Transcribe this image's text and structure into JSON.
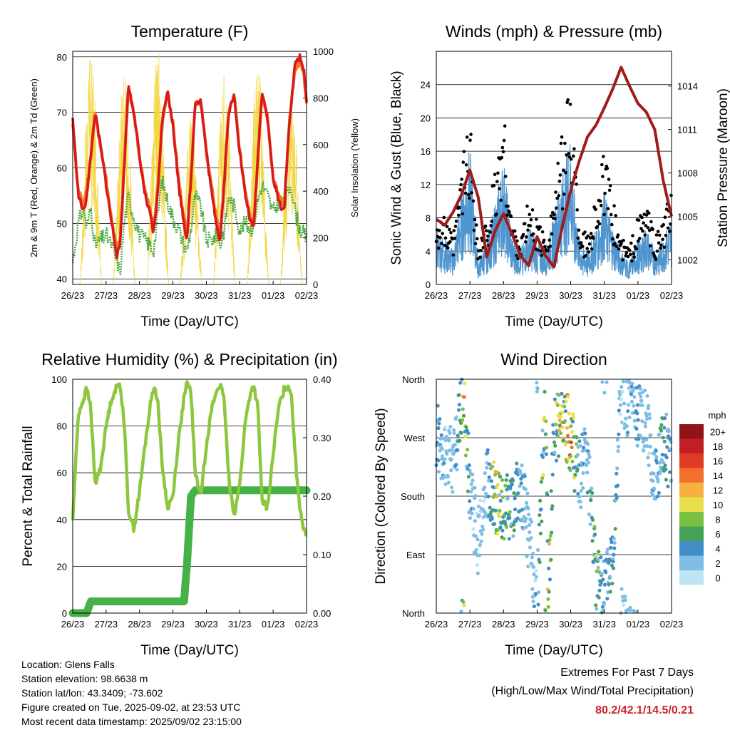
{
  "days": [
    "26/23",
    "27/23",
    "28/23",
    "29/23",
    "30/23",
    "31/23",
    "01/23",
    "02/23"
  ],
  "colors": {
    "temp2m": "#d7191c",
    "temp9m": "#f47a20",
    "dewpoint": "#4aa83f",
    "solar": "#f2d640",
    "wind": "#4f95cf",
    "gust": "#000000",
    "pressure": "#a01c1c",
    "rh": "#8dc63f",
    "precip": "#46b146"
  },
  "speed_scale": {
    "unit": "mph",
    "labels": [
      "0",
      "2",
      "4",
      "6",
      "8",
      "10",
      "12",
      "14",
      "16",
      "18",
      "20+"
    ],
    "colors": [
      "#bde3f4",
      "#7dbde6",
      "#3f8ec8",
      "#46a257",
      "#7ac143",
      "#e8df4a",
      "#f7b043",
      "#f2702b",
      "#df3b26",
      "#c21e25",
      "#8f1519"
    ]
  },
  "panels": {
    "temperature": {
      "title": "Temperature (F)",
      "xlabel": "Time (Day/UTC)",
      "ylabel_left": "2m & 9m T (Red, Orange) & 2m Td (Green)",
      "ylabel_right": "Solar Insolation (Yellow)"
    },
    "winds": {
      "title": "Winds (mph) & Pressure (mb)",
      "xlabel": "Time (Day/UTC)",
      "ylabel_left": "Sonic Wind & Gust (Blue, Black)",
      "ylabel_right": "Station Pressure (Maroon)"
    },
    "humidity": {
      "title": "Relative Humidity (%) & Precipitation (in)",
      "xlabel": "Time (Day/UTC)",
      "ylabel_left": "Percent & Total Rainfall"
    },
    "direction": {
      "title": "Wind Direction",
      "xlabel": "Time (Day/UTC)",
      "ylabel_left": "Direction (Colored By Speed)"
    }
  },
  "chart_data": [
    {
      "type": "line",
      "title": "Temperature (F)",
      "xlabel": "Time (Day/UTC)",
      "ylabel": "2m & 9m T (Red, Orange) & 2m Td (Green)",
      "ylabel_right": "Solar Insolation (Yellow)",
      "x_categories": [
        "26/23",
        "27/23",
        "28/23",
        "29/23",
        "30/23",
        "31/23",
        "01/23",
        "02/23"
      ],
      "ylim": [
        39,
        81
      ],
      "yticks": [
        40,
        50,
        60,
        70,
        80
      ],
      "ylim_right": [
        0,
        1000
      ],
      "yticks_right": [
        0,
        200,
        400,
        600,
        800,
        1000
      ],
      "x_hours": [
        0,
        4,
        8,
        10,
        13,
        16,
        20,
        24,
        28,
        32,
        34,
        37,
        40,
        44,
        48,
        52,
        56,
        58,
        61,
        64,
        68,
        72,
        76,
        80,
        82,
        85,
        88,
        92,
        96,
        100,
        104,
        106,
        109,
        112,
        116,
        120,
        124,
        128,
        130,
        133,
        136,
        140,
        144,
        148,
        152,
        154,
        157,
        160,
        163,
        166,
        168
      ],
      "series": [
        {
          "name": "2m T",
          "axis": "left",
          "values": [
            69,
            55,
            52,
            55,
            62,
            70,
            64,
            57,
            50,
            44,
            46,
            60,
            75,
            70,
            62,
            55,
            51,
            48,
            55,
            68,
            74,
            68,
            57,
            50,
            47,
            58,
            72,
            72,
            63,
            55,
            49,
            47,
            58,
            70,
            73,
            63,
            55,
            50,
            49,
            62,
            74,
            69,
            58,
            54,
            52,
            62,
            72,
            79,
            80,
            78,
            72
          ]
        },
        {
          "name": "9m T",
          "axis": "left",
          "values": [
            68,
            56,
            53,
            56,
            62,
            70,
            64,
            58,
            51,
            45,
            47,
            61,
            74,
            70,
            62,
            56,
            52,
            49,
            56,
            67,
            74,
            68,
            58,
            51,
            48,
            58,
            72,
            72,
            63,
            56,
            50,
            48,
            58,
            70,
            73,
            63,
            56,
            51,
            50,
            62,
            73,
            69,
            58,
            55,
            53,
            62,
            72,
            78,
            79,
            77,
            72
          ]
        },
        {
          "name": "2m Td",
          "axis": "left",
          "values": [
            43,
            50,
            53,
            49,
            53,
            46,
            47,
            48,
            46,
            43,
            41,
            50,
            55,
            51,
            48,
            47,
            46,
            45,
            51,
            58,
            54,
            51,
            49,
            46,
            45,
            49,
            55,
            53,
            47,
            47,
            48,
            46,
            49,
            55,
            53,
            49,
            50,
            49,
            50,
            54,
            57,
            55,
            52,
            54,
            53,
            55,
            57,
            52,
            49,
            48,
            47
          ]
        }
      ],
      "solar": {
        "axis": "right",
        "day_peaks": [
          [
            13,
            1000
          ],
          [
            37,
            920
          ],
          [
            61,
            1020
          ],
          [
            85,
            720
          ],
          [
            109,
            960
          ],
          [
            133,
            960
          ],
          [
            157,
            840
          ]
        ]
      }
    },
    {
      "type": "line",
      "title": "Winds (mph) & Pressure (mb)",
      "xlabel": "Time (Day/UTC)",
      "ylabel": "Sonic Wind & Gust (Blue, Black)",
      "ylabel_right": "Station Pressure (Maroon)",
      "x_categories": [
        "26/23",
        "27/23",
        "28/23",
        "29/23",
        "30/23",
        "31/23",
        "01/23",
        "02/23"
      ],
      "ylim": [
        0,
        28
      ],
      "yticks": [
        0,
        4,
        8,
        12,
        16,
        20,
        24
      ],
      "ylim_right": [
        1000.3,
        1016.4
      ],
      "yticks_right": [
        1002,
        1005,
        1008,
        1011,
        1014
      ],
      "x_hours": [
        0,
        6,
        12,
        18,
        24,
        30,
        36,
        42,
        48,
        54,
        60,
        66,
        72,
        78,
        84,
        90,
        96,
        102,
        108,
        114,
        120,
        126,
        132,
        138,
        144,
        150,
        156,
        162,
        168
      ],
      "series": [
        {
          "name": "Sonic Wind",
          "axis": "left",
          "values": [
            5,
            4,
            3,
            8,
            12,
            2,
            4,
            7,
            11,
            4,
            3,
            5,
            4,
            3,
            6,
            10,
            13,
            4,
            3,
            5,
            8,
            5,
            3,
            2,
            4,
            5,
            3,
            4,
            6
          ]
        },
        {
          "name": "Gust",
          "axis": "left",
          "values": [
            8,
            7,
            5,
            13,
            18,
            4,
            7,
            12,
            19,
            7,
            5,
            9,
            7,
            5,
            10,
            16,
            22,
            7,
            5,
            10,
            14,
            9,
            5,
            4,
            7,
            9,
            5,
            7,
            10
          ]
        },
        {
          "name": "Station Pressure",
          "axis": "right",
          "values": [
            1004.8,
            1004.4,
            1005.3,
            1006.5,
            1008.2,
            1006.3,
            1002.2,
            1004.0,
            1005.2,
            1003.8,
            1002.3,
            1001.6,
            1003.6,
            1002.3,
            1001.5,
            1004.3,
            1006.8,
            1008.8,
            1010.5,
            1011.3,
            1012.5,
            1013.8,
            1015.3,
            1014.0,
            1012.8,
            1012.2,
            1011.0,
            1007.5,
            1005.0
          ]
        }
      ]
    },
    {
      "type": "line",
      "title": "Relative Humidity (%) & Precipitation (in)",
      "xlabel": "Time (Day/UTC)",
      "ylabel": "Percent & Total Rainfall",
      "x_categories": [
        "26/23",
        "27/23",
        "28/23",
        "29/23",
        "30/23",
        "31/23",
        "01/23",
        "02/23"
      ],
      "ylim": [
        0,
        100
      ],
      "yticks": [
        0,
        20,
        40,
        60,
        80,
        100
      ],
      "ylim_right": [
        0,
        0.4
      ],
      "yticks_right": [
        "0.00",
        "0.10",
        "0.20",
        "0.30",
        "0.40"
      ],
      "x_hours": [
        0,
        4,
        8,
        10,
        13,
        16,
        20,
        24,
        28,
        32,
        34,
        37,
        40,
        44,
        48,
        52,
        56,
        58,
        61,
        64,
        68,
        72,
        76,
        80,
        82,
        85,
        88,
        92,
        96,
        100,
        104,
        106,
        109,
        112,
        116,
        120,
        124,
        128,
        130,
        133,
        136,
        140,
        144,
        148,
        152,
        154,
        157,
        160,
        163,
        166,
        168
      ],
      "series": [
        {
          "name": "Relative Humidity",
          "axis": "left",
          "values": [
            40,
            85,
            92,
            96,
            88,
            55,
            62,
            80,
            92,
            97,
            98,
            82,
            44,
            36,
            52,
            72,
            90,
            97,
            92,
            65,
            45,
            50,
            74,
            92,
            98,
            95,
            60,
            50,
            72,
            88,
            96,
            98,
            90,
            58,
            42,
            55,
            82,
            95,
            97,
            88,
            48,
            45,
            68,
            88,
            96,
            97,
            95,
            66,
            46,
            36,
            34
          ]
        },
        {
          "name": "Total Precipitation",
          "axis": "right",
          "values": [
            0,
            0,
            0,
            0,
            0.02,
            0.02,
            0.02,
            0.02,
            0.02,
            0.02,
            0.02,
            0.02,
            0.02,
            0.02,
            0.02,
            0.02,
            0.02,
            0.02,
            0.02,
            0.02,
            0.02,
            0.02,
            0.02,
            0.02,
            0.08,
            0.2,
            0.21,
            0.21,
            0.21,
            0.21,
            0.21,
            0.21,
            0.21,
            0.21,
            0.21,
            0.21,
            0.21,
            0.21,
            0.21,
            0.21,
            0.21,
            0.21,
            0.21,
            0.21,
            0.21,
            0.21,
            0.21,
            0.21,
            0.21,
            0.21,
            0.21
          ]
        }
      ]
    },
    {
      "type": "scatter",
      "title": "Wind Direction",
      "xlabel": "Time (Day/UTC)",
      "ylabel": "Direction (Colored By Speed)",
      "x_categories": [
        "26/23",
        "27/23",
        "28/23",
        "29/23",
        "30/23",
        "31/23",
        "01/23",
        "02/23"
      ],
      "y_categories": [
        "North",
        "East",
        "South",
        "West",
        "North"
      ],
      "ylim": [
        0,
        360
      ],
      "color_by": "speed (mph)",
      "x_hours": [
        0,
        6,
        12,
        18,
        20,
        24,
        30,
        36,
        42,
        48,
        54,
        60,
        66,
        72,
        78,
        80,
        84,
        90,
        96,
        102,
        108,
        114,
        120,
        126,
        132,
        138,
        144,
        150,
        156,
        162,
        168
      ],
      "direction": [
        270,
        250,
        230,
        320,
        340,
        180,
        110,
        200,
        175,
        170,
        160,
        195,
        120,
        20,
        345,
        5,
        280,
        300,
        270,
        210,
        240,
        60,
        30,
        75,
        350,
        320,
        310,
        300,
        200,
        260,
        240
      ],
      "speed": [
        4,
        3,
        2,
        8,
        12,
        3,
        2,
        2,
        10,
        8,
        6,
        4,
        2,
        3,
        10,
        12,
        6,
        12,
        14,
        4,
        3,
        8,
        4,
        6,
        2,
        3,
        4,
        2,
        3,
        6,
        4
      ]
    }
  ],
  "info": {
    "location": "Location: Glens Falls",
    "elevation": "Station elevation: 98.6638 m",
    "latlon": "Station lat/lon: 43.3409; -73.602",
    "created": "Figure created on Tue, 2025-09-02, at 23:53 UTC",
    "recent": "Most recent data timestamp: 2025/09/02 23:15:00"
  },
  "extremes": {
    "title": "Extremes For Past 7 Days",
    "subtitle": "(High/Low/Max Wind/Total Precipitation)",
    "values": "80.2/42.1/14.5/0.21"
  }
}
